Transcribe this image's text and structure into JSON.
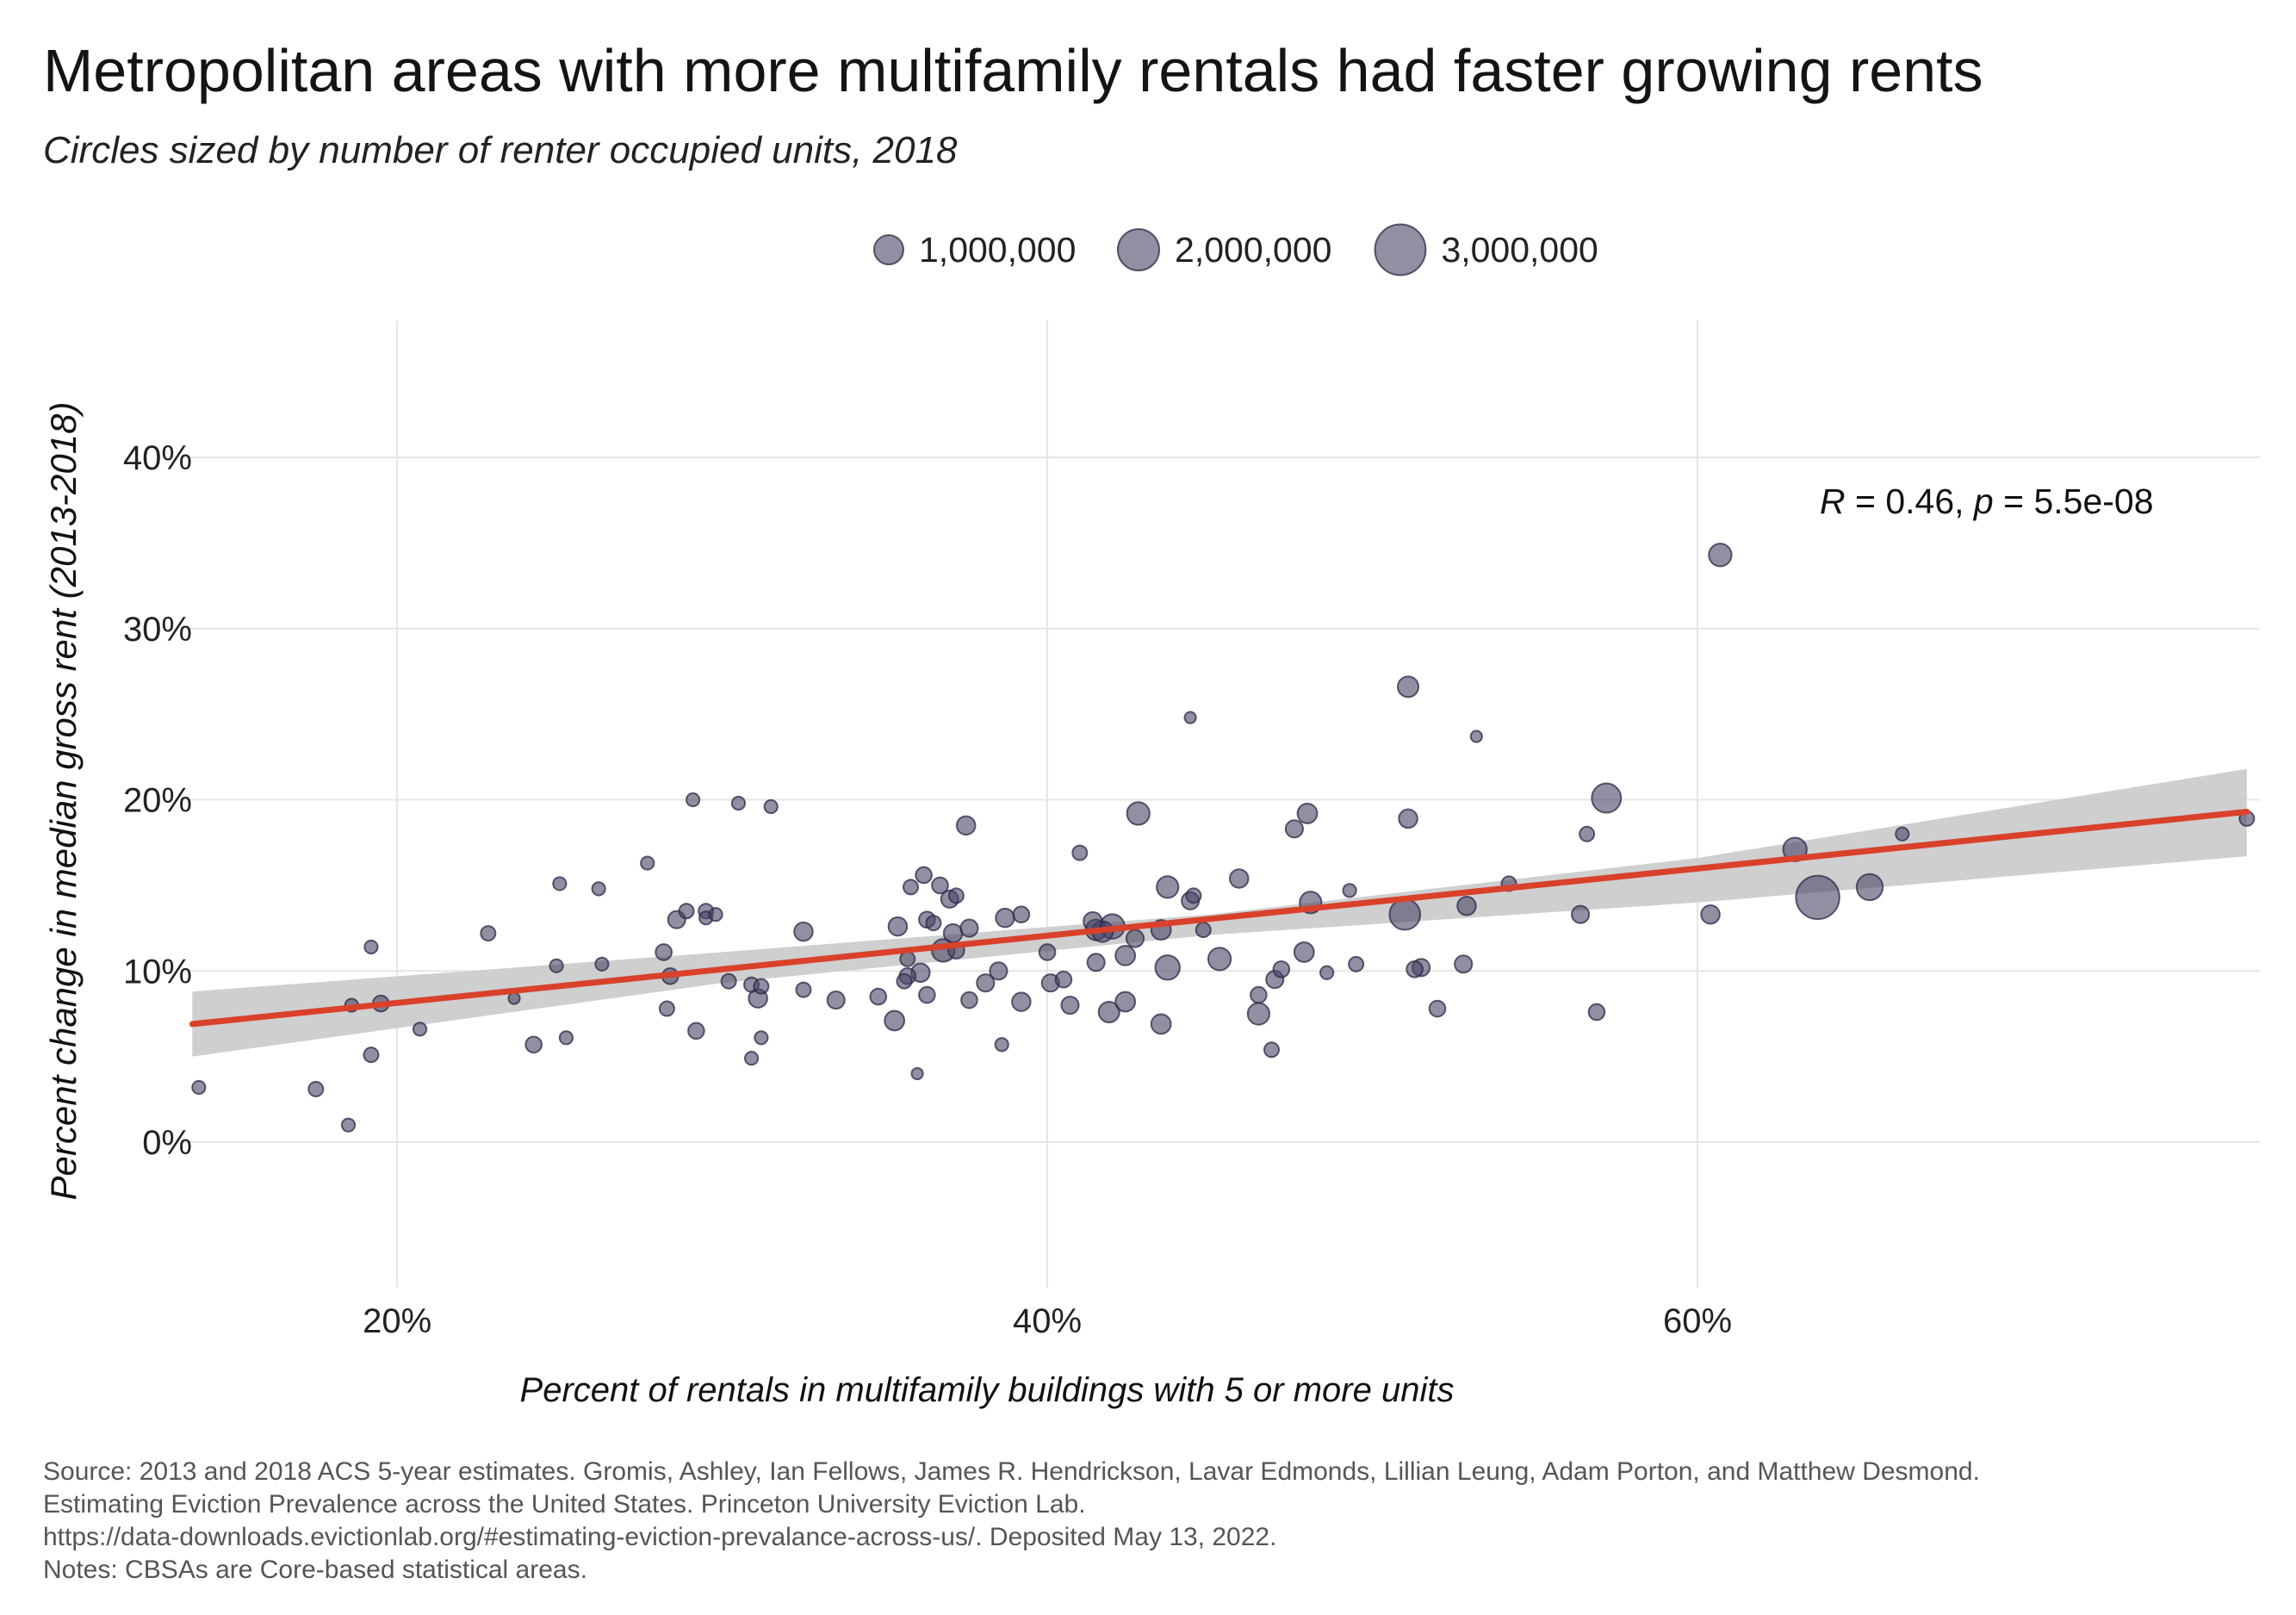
{
  "title": "Metropolitan areas with more multifamily rentals had faster growing rents",
  "subtitle": "Circles sized by number of renter occupied units, 2018",
  "legend": {
    "items": [
      {
        "label": "1,000,000",
        "value": 1000000
      },
      {
        "label": "2,000,000",
        "value": 2000000
      },
      {
        "label": "3,000,000",
        "value": 3000000
      }
    ]
  },
  "colors": {
    "points": "#4a4466",
    "trend_line": "#d9412b",
    "confidence_band": "#cccccc",
    "grid": "#e5e5e5"
  },
  "annotation": {
    "r_label": "R",
    "r_text": " = 0.46, ",
    "p_label": "p",
    "p_text": " = 5.5e-08"
  },
  "source_notes": [
    "Source: 2013 and 2018 ACS 5-year estimates. Gromis, Ashley, Ian Fellows, James R. Hendrickson, Lavar Edmonds, Lillian Leung, Adam Porton, and Matthew Desmond.",
    "Estimating Eviction Prevalence across the United States. Princeton University Eviction Lab.",
    "https://data-downloads.evictionlab.org/#estimating-eviction-prevalance-across-us/. Deposited May 13, 2022.",
    "Notes: CBSAs are Core-based statistical areas."
  ],
  "chart_data": {
    "type": "scatter",
    "title": "Metropolitan areas with more multifamily rentals had faster growing rents",
    "subtitle": "Circles sized by number of renter occupied units, 2018",
    "xlabel": "Percent of rentals in multifamily buildings with 5 or more units",
    "ylabel": "Percent change in median gross rent (2013-2018)",
    "xlim": [
      13.4,
      77.3
    ],
    "ylim": [
      -8.5,
      48
    ],
    "x_ticks": [
      20,
      40,
      60
    ],
    "x_tick_labels": [
      "20%",
      "40%",
      "60%"
    ],
    "y_ticks": [
      0,
      10,
      20,
      30,
      40
    ],
    "y_tick_labels": [
      "0%",
      "10%",
      "20%",
      "30%",
      "40%"
    ],
    "grid": true,
    "legend_position": "top",
    "size_variable": "renter occupied units, 2018",
    "trend": {
      "x0": 13.7,
      "y0": 6.9,
      "x1": 76.9,
      "y1": 19.3
    },
    "band": {
      "upper": [
        [
          13.7,
          8.8
        ],
        [
          30,
          11.1
        ],
        [
          45,
          13.3
        ],
        [
          60,
          16.6
        ],
        [
          76.9,
          21.8
        ]
      ],
      "lower": [
        [
          13.7,
          5.0
        ],
        [
          30,
          9.3
        ],
        [
          45,
          12.1
        ],
        [
          60,
          14.0
        ],
        [
          76.9,
          16.7
        ]
      ]
    },
    "points": [
      {
        "x": 13.9,
        "y": 3.2,
        "size": 200000
      },
      {
        "x": 17.5,
        "y": 3.1,
        "size": 250000
      },
      {
        "x": 18.5,
        "y": 1.0,
        "size": 200000
      },
      {
        "x": 18.6,
        "y": 8.0,
        "size": 200000
      },
      {
        "x": 19.2,
        "y": 11.4,
        "size": 200000
      },
      {
        "x": 19.2,
        "y": 5.1,
        "size": 250000
      },
      {
        "x": 19.5,
        "y": 8.1,
        "size": 300000
      },
      {
        "x": 20.7,
        "y": 6.6,
        "size": 200000
      },
      {
        "x": 22.8,
        "y": 12.2,
        "size": 250000
      },
      {
        "x": 23.6,
        "y": 8.4,
        "size": 150000
      },
      {
        "x": 24.2,
        "y": 5.7,
        "size": 300000
      },
      {
        "x": 24.9,
        "y": 10.3,
        "size": 200000
      },
      {
        "x": 25.0,
        "y": 15.1,
        "size": 200000
      },
      {
        "x": 25.2,
        "y": 6.1,
        "size": 200000
      },
      {
        "x": 26.2,
        "y": 14.8,
        "size": 200000
      },
      {
        "x": 26.3,
        "y": 10.4,
        "size": 200000
      },
      {
        "x": 27.7,
        "y": 16.3,
        "size": 200000
      },
      {
        "x": 28.2,
        "y": 11.1,
        "size": 300000
      },
      {
        "x": 28.3,
        "y": 7.8,
        "size": 250000
      },
      {
        "x": 28.4,
        "y": 9.7,
        "size": 300000
      },
      {
        "x": 28.6,
        "y": 13.0,
        "size": 350000
      },
      {
        "x": 28.9,
        "y": 13.5,
        "size": 250000
      },
      {
        "x": 29.1,
        "y": 20.0,
        "size": 200000
      },
      {
        "x": 29.2,
        "y": 6.5,
        "size": 300000
      },
      {
        "x": 29.5,
        "y": 13.5,
        "size": 250000
      },
      {
        "x": 29.5,
        "y": 13.1,
        "size": 200000
      },
      {
        "x": 29.8,
        "y": 13.3,
        "size": 200000
      },
      {
        "x": 30.2,
        "y": 9.4,
        "size": 250000
      },
      {
        "x": 30.5,
        "y": 19.8,
        "size": 200000
      },
      {
        "x": 30.9,
        "y": 9.2,
        "size": 250000
      },
      {
        "x": 30.9,
        "y": 4.9,
        "size": 200000
      },
      {
        "x": 31.1,
        "y": 8.4,
        "size": 400000
      },
      {
        "x": 31.2,
        "y": 9.1,
        "size": 250000
      },
      {
        "x": 31.2,
        "y": 6.1,
        "size": 200000
      },
      {
        "x": 31.5,
        "y": 19.6,
        "size": 200000
      },
      {
        "x": 32.5,
        "y": 12.3,
        "size": 400000
      },
      {
        "x": 32.5,
        "y": 8.9,
        "size": 250000
      },
      {
        "x": 33.5,
        "y": 8.3,
        "size": 350000
      },
      {
        "x": 34.8,
        "y": 8.5,
        "size": 300000
      },
      {
        "x": 35.3,
        "y": 7.1,
        "size": 450000
      },
      {
        "x": 35.4,
        "y": 12.6,
        "size": 400000
      },
      {
        "x": 35.6,
        "y": 9.4,
        "size": 250000
      },
      {
        "x": 35.7,
        "y": 10.7,
        "size": 250000
      },
      {
        "x": 35.7,
        "y": 9.7,
        "size": 300000
      },
      {
        "x": 35.8,
        "y": 14.9,
        "size": 250000
      },
      {
        "x": 36.0,
        "y": 4.0,
        "size": 150000
      },
      {
        "x": 36.1,
        "y": 9.9,
        "size": 400000
      },
      {
        "x": 36.2,
        "y": 15.6,
        "size": 300000
      },
      {
        "x": 36.3,
        "y": 13.0,
        "size": 300000
      },
      {
        "x": 36.3,
        "y": 8.6,
        "size": 300000
      },
      {
        "x": 36.5,
        "y": 12.8,
        "size": 250000
      },
      {
        "x": 36.7,
        "y": 15.0,
        "size": 300000
      },
      {
        "x": 36.8,
        "y": 11.2,
        "size": 600000
      },
      {
        "x": 37.0,
        "y": 14.2,
        "size": 350000
      },
      {
        "x": 37.1,
        "y": 12.2,
        "size": 400000
      },
      {
        "x": 37.2,
        "y": 11.2,
        "size": 300000
      },
      {
        "x": 37.2,
        "y": 14.4,
        "size": 250000
      },
      {
        "x": 37.5,
        "y": 18.5,
        "size": 400000
      },
      {
        "x": 37.6,
        "y": 12.5,
        "size": 350000
      },
      {
        "x": 37.6,
        "y": 8.3,
        "size": 300000
      },
      {
        "x": 38.1,
        "y": 9.3,
        "size": 350000
      },
      {
        "x": 38.5,
        "y": 10.0,
        "size": 350000
      },
      {
        "x": 38.6,
        "y": 5.7,
        "size": 200000
      },
      {
        "x": 38.7,
        "y": 13.1,
        "size": 400000
      },
      {
        "x": 39.2,
        "y": 8.2,
        "size": 400000
      },
      {
        "x": 39.2,
        "y": 13.3,
        "size": 300000
      },
      {
        "x": 40.0,
        "y": 11.1,
        "size": 300000
      },
      {
        "x": 40.1,
        "y": 9.3,
        "size": 350000
      },
      {
        "x": 40.5,
        "y": 9.5,
        "size": 300000
      },
      {
        "x": 40.7,
        "y": 8.0,
        "size": 350000
      },
      {
        "x": 41.0,
        "y": 16.9,
        "size": 250000
      },
      {
        "x": 41.4,
        "y": 12.9,
        "size": 400000
      },
      {
        "x": 41.5,
        "y": 10.5,
        "size": 350000
      },
      {
        "x": 41.5,
        "y": 12.4,
        "size": 500000
      },
      {
        "x": 41.7,
        "y": 12.3,
        "size": 500000
      },
      {
        "x": 41.9,
        "y": 7.6,
        "size": 500000
      },
      {
        "x": 42.0,
        "y": 12.6,
        "size": 700000
      },
      {
        "x": 42.4,
        "y": 10.9,
        "size": 450000
      },
      {
        "x": 42.4,
        "y": 8.2,
        "size": 450000
      },
      {
        "x": 42.7,
        "y": 11.9,
        "size": 350000
      },
      {
        "x": 42.8,
        "y": 19.2,
        "size": 600000
      },
      {
        "x": 43.5,
        "y": 6.9,
        "size": 450000
      },
      {
        "x": 43.5,
        "y": 12.4,
        "size": 450000
      },
      {
        "x": 43.7,
        "y": 14.9,
        "size": 550000
      },
      {
        "x": 43.7,
        "y": 10.2,
        "size": 700000
      },
      {
        "x": 44.4,
        "y": 24.8,
        "size": 150000
      },
      {
        "x": 44.4,
        "y": 14.1,
        "size": 350000
      },
      {
        "x": 44.5,
        "y": 14.4,
        "size": 250000
      },
      {
        "x": 44.8,
        "y": 12.4,
        "size": 250000
      },
      {
        "x": 45.3,
        "y": 10.7,
        "size": 600000
      },
      {
        "x": 45.9,
        "y": 15.4,
        "size": 400000
      },
      {
        "x": 46.5,
        "y": 8.6,
        "size": 300000
      },
      {
        "x": 46.5,
        "y": 7.5,
        "size": 550000
      },
      {
        "x": 46.9,
        "y": 5.4,
        "size": 250000
      },
      {
        "x": 47.0,
        "y": 9.5,
        "size": 350000
      },
      {
        "x": 47.2,
        "y": 10.1,
        "size": 300000
      },
      {
        "x": 47.6,
        "y": 18.3,
        "size": 350000
      },
      {
        "x": 47.9,
        "y": 11.1,
        "size": 450000
      },
      {
        "x": 48.0,
        "y": 19.2,
        "size": 450000
      },
      {
        "x": 48.1,
        "y": 14.0,
        "size": 550000
      },
      {
        "x": 48.6,
        "y": 9.9,
        "size": 200000
      },
      {
        "x": 49.3,
        "y": 14.7,
        "size": 200000
      },
      {
        "x": 49.5,
        "y": 10.4,
        "size": 250000
      },
      {
        "x": 51.0,
        "y": 13.3,
        "size": 1100000
      },
      {
        "x": 51.1,
        "y": 18.9,
        "size": 400000
      },
      {
        "x": 51.1,
        "y": 26.6,
        "size": 500000
      },
      {
        "x": 51.3,
        "y": 10.1,
        "size": 300000
      },
      {
        "x": 51.5,
        "y": 10.2,
        "size": 350000
      },
      {
        "x": 52.0,
        "y": 7.8,
        "size": 300000
      },
      {
        "x": 52.8,
        "y": 10.4,
        "size": 350000
      },
      {
        "x": 52.9,
        "y": 13.8,
        "size": 400000
      },
      {
        "x": 53.2,
        "y": 23.7,
        "size": 150000
      },
      {
        "x": 54.2,
        "y": 15.1,
        "size": 250000
      },
      {
        "x": 56.4,
        "y": 13.3,
        "size": 350000
      },
      {
        "x": 56.6,
        "y": 18.0,
        "size": 250000
      },
      {
        "x": 56.9,
        "y": 7.6,
        "size": 300000
      },
      {
        "x": 57.2,
        "y": 20.1,
        "size": 1000000
      },
      {
        "x": 60.4,
        "y": 13.3,
        "size": 400000
      },
      {
        "x": 60.7,
        "y": 34.3,
        "size": 600000
      },
      {
        "x": 63.0,
        "y": 17.1,
        "size": 650000
      },
      {
        "x": 63.7,
        "y": 14.3,
        "size": 2200000
      },
      {
        "x": 65.3,
        "y": 14.9,
        "size": 800000
      },
      {
        "x": 66.3,
        "y": 18.0,
        "size": 200000
      },
      {
        "x": 76.9,
        "y": 18.9,
        "size": 250000
      }
    ]
  }
}
